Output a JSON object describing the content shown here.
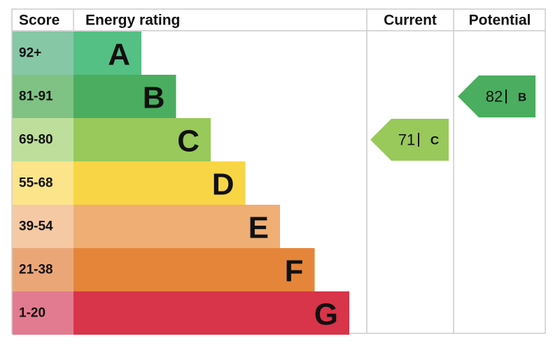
{
  "header": {
    "score": "Score",
    "rating": "Energy rating",
    "current": "Current",
    "potential": "Potential"
  },
  "bands": [
    {
      "score": "92+",
      "letter": "A",
      "color": "#55c083",
      "light": "#86c7a6"
    },
    {
      "score": "81-91",
      "letter": "B",
      "color": "#4aad5f",
      "light": "#7fc283"
    },
    {
      "score": "69-80",
      "letter": "C",
      "color": "#98c95a",
      "light": "#bddf9b"
    },
    {
      "score": "55-68",
      "letter": "D",
      "color": "#f8d545",
      "light": "#fbe48a"
    },
    {
      "score": "39-54",
      "letter": "E",
      "color": "#efae74",
      "light": "#f4c9a3"
    },
    {
      "score": "21-38",
      "letter": "F",
      "color": "#e5853a",
      "light": "#eba678"
    },
    {
      "score": "1-20",
      "letter": "G",
      "color": "#d8344a",
      "light": "#e27b8f"
    }
  ],
  "current": {
    "score": 71,
    "band": "C"
  },
  "potential": {
    "score": 82,
    "band": "B"
  }
}
